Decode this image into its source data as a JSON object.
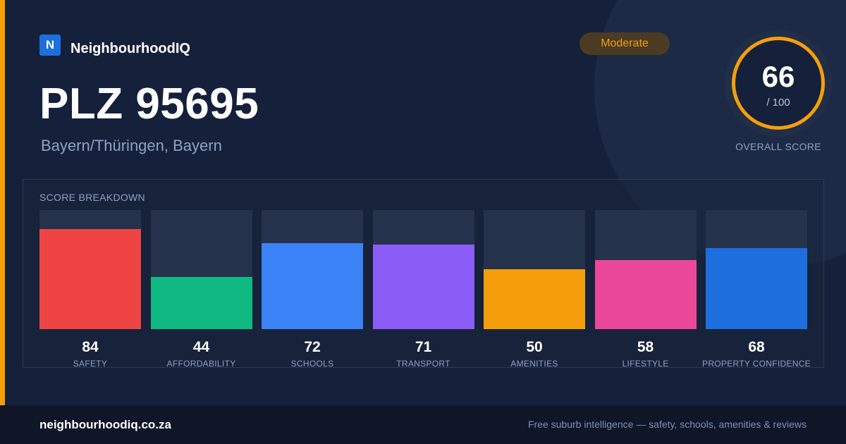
{
  "brand": {
    "logo_letter": "N",
    "name": "NeighbourhoodIQ"
  },
  "location": {
    "title": "PLZ 95695",
    "region": "Bayern/Thüringen, Bayern"
  },
  "rating_badge": "Moderate",
  "overall": {
    "score": "66",
    "max": "/ 100",
    "caption": "OVERALL SCORE"
  },
  "breakdown": {
    "title": "SCORE BREAKDOWN",
    "items": [
      {
        "label": "SAFETY",
        "value": "84",
        "score": 84,
        "color": "#ef4444"
      },
      {
        "label": "AFFORDABILITY",
        "value": "44",
        "score": 44,
        "color": "#10b981"
      },
      {
        "label": "SCHOOLS",
        "value": "72",
        "score": 72,
        "color": "#3b82f6"
      },
      {
        "label": "TRANSPORT",
        "value": "71",
        "score": 71,
        "color": "#8b5cf6"
      },
      {
        "label": "AMENITIES",
        "value": "50",
        "score": 50,
        "color": "#f59e0b"
      },
      {
        "label": "LIFESTYLE",
        "value": "58",
        "score": 58,
        "color": "#ec4899"
      },
      {
        "label": "PROPERTY CONFIDENCE",
        "value": "68",
        "score": 68,
        "color": "#1d6fde"
      }
    ]
  },
  "footer": {
    "url": "neighbourhoodiq.co.za",
    "tagline": "Free suburb intelligence — safety, schools, amenities & reviews"
  },
  "colors": {
    "accent": "#f59e0b",
    "background": "#15213a",
    "brand": "#1d6fde"
  }
}
